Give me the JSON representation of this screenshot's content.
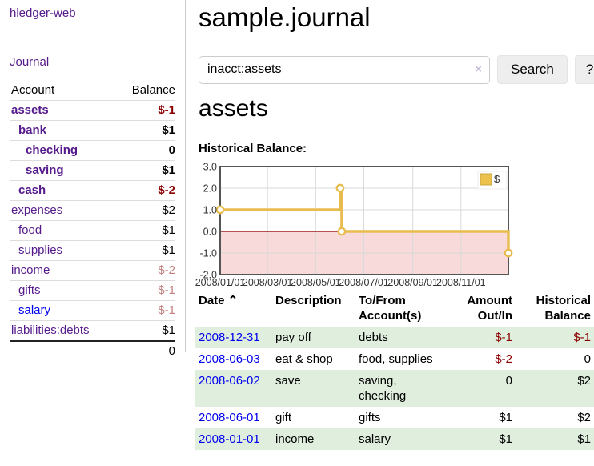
{
  "app": {
    "title": "hledger-web"
  },
  "colors": {
    "link_purple": "#551a8b",
    "link_blue": "#0000ee",
    "negative_strong": "#8b0000",
    "negative_soft": "#c28080",
    "row_stripe": "#dfeedd",
    "button_bg": "#eeeeee",
    "border_light": "#cccccc",
    "clear_icon": "#c9bfdb",
    "chart_line": "#e9bc4f",
    "chart_marker_fill": "#ffffff",
    "chart_legend_fill": "#ecc24d",
    "chart_legend_border": "#c9a53f",
    "chart_negative_fill": "#f9dada",
    "chart_zero_line": "#8b0000",
    "chart_frame": "#555555",
    "chart_grid": "#d9d9d9",
    "chart_text": "#333333"
  },
  "sidebar": {
    "journal_link": "Journal",
    "accounts_header": {
      "account": "Account",
      "balance": "Balance"
    },
    "accounts": [
      {
        "name": "assets",
        "balance": "$-1",
        "level": 1,
        "bold": true,
        "balance_tone": "neg-strong",
        "link": "purple"
      },
      {
        "name": "bank",
        "balance": "$1",
        "level": 2,
        "bold": true,
        "balance_tone": null,
        "link": "purple"
      },
      {
        "name": "checking",
        "balance": "0",
        "level": 3,
        "bold": true,
        "balance_tone": null,
        "link": "purple"
      },
      {
        "name": "saving",
        "balance": "$1",
        "level": 3,
        "bold": true,
        "balance_tone": null,
        "link": "purple"
      },
      {
        "name": "cash",
        "balance": "$-2",
        "level": 2,
        "bold": true,
        "balance_tone": "neg-strong",
        "link": "purple"
      },
      {
        "name": "expenses",
        "balance": "$2",
        "level": 1,
        "bold": false,
        "balance_tone": null,
        "link": "purple"
      },
      {
        "name": "food",
        "balance": "$1",
        "level": 2,
        "bold": false,
        "balance_tone": null,
        "link": "purple"
      },
      {
        "name": "supplies",
        "balance": "$1",
        "level": 2,
        "bold": false,
        "balance_tone": null,
        "link": "purple"
      },
      {
        "name": "income",
        "balance": "$-2",
        "level": 1,
        "bold": false,
        "balance_tone": "neg-soft",
        "link": "purple"
      },
      {
        "name": "gifts",
        "balance": "$-1",
        "level": 2,
        "bold": false,
        "balance_tone": "neg-soft",
        "link": "purple"
      },
      {
        "name": "salary",
        "balance": "$-1",
        "level": 2,
        "bold": false,
        "balance_tone": "neg-soft",
        "link": "blue"
      },
      {
        "name": "liabilities:debts",
        "balance": "$1",
        "level": 1,
        "bold": false,
        "balance_tone": null,
        "link": "purple"
      }
    ],
    "total": "0"
  },
  "main": {
    "title": "sample.journal",
    "search": {
      "value": "inacct:assets",
      "clear_icon": "×",
      "button": "Search",
      "help": "?"
    },
    "account_heading": "assets",
    "chart_label": "Historical Balance:",
    "register": {
      "headers": [
        {
          "label": "Date",
          "sort": "⌃",
          "align": "l"
        },
        {
          "label": "Description",
          "align": "l"
        },
        {
          "label": "To/From Account(s)",
          "align": "l"
        },
        {
          "label": "Amount Out/In",
          "align": "r"
        },
        {
          "label": "Historical Balance",
          "align": "r"
        }
      ],
      "rows": [
        {
          "date": "2008-12-31",
          "description": "pay off",
          "accounts": "debts",
          "amount": "$-1",
          "amount_negative": true,
          "balance": "$-1",
          "balance_negative": true
        },
        {
          "date": "2008-06-03",
          "description": "eat & shop",
          "accounts": "food, supplies",
          "amount": "$-2",
          "amount_negative": true,
          "balance": "0",
          "balance_negative": false
        },
        {
          "date": "2008-06-02",
          "description": "save",
          "accounts": "saving, checking",
          "amount": "0",
          "amount_negative": false,
          "balance": "$2",
          "balance_negative": false
        },
        {
          "date": "2008-06-01",
          "description": "gift",
          "accounts": "gifts",
          "amount": "$1",
          "amount_negative": false,
          "balance": "$2",
          "balance_negative": false
        },
        {
          "date": "2008-01-01",
          "description": "income",
          "accounts": "salary",
          "amount": "$1",
          "amount_negative": false,
          "balance": "$1",
          "balance_negative": false
        }
      ]
    }
  },
  "chart_data": {
    "type": "line",
    "step": true,
    "title": "Historical Balance:",
    "series_name": "$",
    "points": [
      {
        "date": "2008-01-01",
        "day": 0,
        "value": 1
      },
      {
        "date": "2008-06-01",
        "day": 152,
        "value": 2
      },
      {
        "date": "2008-06-03",
        "day": 154,
        "value": 0
      },
      {
        "date": "2008-12-31",
        "day": 365,
        "value": -1
      }
    ],
    "ylim": [
      -2,
      3
    ],
    "yticks": [
      {
        "label": "3.0",
        "value": 3
      },
      {
        "label": "2.0",
        "value": 2
      },
      {
        "label": "1.0",
        "value": 1
      },
      {
        "label": "0.0",
        "value": 0
      },
      {
        "label": "-1.0",
        "value": -1
      },
      {
        "label": "-2.0",
        "value": -2
      }
    ],
    "xticks": [
      {
        "label": "2008/01/01",
        "day": 0
      },
      {
        "label": "2008/03/01",
        "day": 60
      },
      {
        "label": "2008/05/01",
        "day": 121
      },
      {
        "label": "2008/07/01",
        "day": 182
      },
      {
        "label": "2008/09/01",
        "day": 244
      },
      {
        "label": "2008/11/01",
        "day": 305
      }
    ],
    "x_range_days": 365,
    "legend": "$",
    "legend_position": "top-right",
    "grid": true,
    "negative_region_shaded": true
  }
}
